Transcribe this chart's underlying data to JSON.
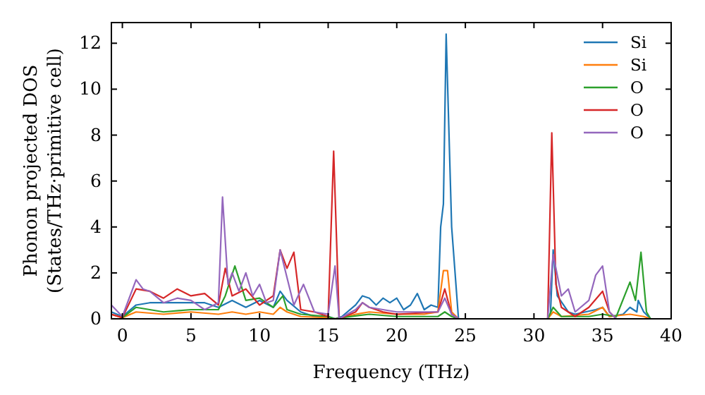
{
  "chart_data": {
    "type": "line",
    "xlabel": "Frequency (THz)",
    "ylabel": "Phonon projected DOS\n(States/THz·primitive cell)",
    "xlim": [
      -0.8,
      40
    ],
    "ylim": [
      0,
      12.9
    ],
    "xticks": [
      0,
      5,
      10,
      15,
      20,
      25,
      30,
      35,
      40
    ],
    "yticks": [
      0,
      2,
      4,
      6,
      8,
      10,
      12
    ],
    "legend": "top right",
    "grid": false,
    "series": [
      {
        "name": "Si",
        "color": "#1f77b4",
        "x": [
          -0.8,
          0,
          1,
          2,
          4,
          6,
          7,
          8,
          9,
          10,
          11,
          11.5,
          12,
          13,
          14,
          15,
          15.5,
          16,
          17,
          17.5,
          18,
          18.5,
          19,
          19.5,
          20,
          20.5,
          21,
          21.5,
          22,
          22.5,
          23,
          23.2,
          23.4,
          23.6,
          24,
          24.5,
          31,
          31.2,
          31.4,
          31.7,
          32.5,
          33,
          34.5,
          35,
          35.5,
          36.5,
          37,
          37.5,
          37.6,
          38,
          38.5
        ],
        "values": [
          0.3,
          0.1,
          0.6,
          0.7,
          0.7,
          0.7,
          0.5,
          0.8,
          0.5,
          0.8,
          0.5,
          1.2,
          0.8,
          0.3,
          0.1,
          0.1,
          0,
          0.1,
          0.6,
          1.0,
          0.9,
          0.6,
          0.9,
          0.7,
          0.9,
          0.4,
          0.6,
          1.1,
          0.4,
          0.6,
          0.5,
          4.0,
          5.0,
          12.4,
          4.0,
          0,
          0,
          0.2,
          3.0,
          1.0,
          0.3,
          0.2,
          0.4,
          0.5,
          0.1,
          0.2,
          0.5,
          0.3,
          0.8,
          0.3,
          0
        ]
      },
      {
        "name": "Si",
        "color": "#ff7f0e",
        "x": [
          -0.8,
          0,
          1,
          3,
          5,
          7,
          8,
          9,
          10,
          11,
          11.5,
          12,
          13,
          15,
          15.5,
          16,
          17,
          18,
          20,
          22,
          23,
          23.4,
          23.7,
          24,
          24.5,
          31,
          31.4,
          32,
          34,
          35,
          35.5,
          37,
          38,
          38.5
        ],
        "values": [
          0.2,
          0.05,
          0.3,
          0.2,
          0.3,
          0.2,
          0.3,
          0.2,
          0.3,
          0.2,
          0.5,
          0.3,
          0.1,
          0.05,
          0,
          0.05,
          0.2,
          0.3,
          0.2,
          0.2,
          0.3,
          2.1,
          2.1,
          0.3,
          0,
          0,
          0.3,
          0.1,
          0.2,
          0.5,
          0.1,
          0.2,
          0.1,
          0
        ]
      },
      {
        "name": "O",
        "color": "#2ca02c",
        "x": [
          0,
          1,
          3,
          5,
          7,
          7.5,
          8.2,
          9,
          10,
          11,
          11.7,
          12,
          13,
          15,
          15.5,
          16,
          18,
          20,
          23,
          23.5,
          24,
          24.5,
          31,
          31.4,
          32,
          34,
          35,
          36,
          37,
          37.4,
          37.8,
          38.2,
          38.5
        ],
        "values": [
          0.05,
          0.5,
          0.3,
          0.4,
          0.4,
          1.0,
          2.3,
          0.8,
          0.9,
          0.5,
          1.0,
          0.4,
          0.2,
          0.1,
          0,
          0.05,
          0.2,
          0.1,
          0.1,
          0.3,
          0.1,
          0,
          0,
          0.5,
          0.1,
          0.1,
          0.2,
          0.1,
          1.6,
          0.8,
          2.9,
          0.3,
          0
        ]
      },
      {
        "name": "O",
        "color": "#d62728",
        "x": [
          -0.8,
          0,
          1,
          2,
          3,
          4,
          5,
          6,
          7,
          7.5,
          8,
          9,
          10,
          11,
          11.5,
          12,
          12.5,
          13,
          14,
          15,
          15.4,
          15.8,
          17,
          17.5,
          18,
          19,
          20,
          23,
          23.5,
          24,
          24.5,
          31,
          31.3,
          31.6,
          32,
          33,
          34,
          35,
          35.5,
          36
        ],
        "values": [
          0.2,
          0.05,
          1.3,
          1.2,
          0.9,
          1.3,
          1.0,
          1.1,
          0.6,
          2.2,
          1.0,
          1.3,
          0.6,
          1.0,
          3.0,
          2.2,
          2.9,
          0.4,
          0.3,
          0.1,
          7.3,
          0,
          0.3,
          0.7,
          0.5,
          0.3,
          0.2,
          0.3,
          1.3,
          0.2,
          0,
          0,
          8.1,
          1.5,
          0.5,
          0.1,
          0.5,
          1.2,
          0.3,
          0
        ]
      },
      {
        "name": "O",
        "color": "#9467bd",
        "x": [
          -0.8,
          0,
          1,
          1.5,
          2,
          3,
          4,
          5,
          6,
          7,
          7.3,
          7.7,
          8,
          8.5,
          9,
          9.5,
          10,
          10.5,
          11,
          11.5,
          12,
          12.5,
          13.2,
          14,
          15,
          15.5,
          15.8,
          17,
          17.5,
          18,
          19,
          20,
          23,
          23.5,
          24,
          24.5,
          31,
          31.4,
          32,
          32.5,
          33,
          34,
          34.5,
          35,
          35.5,
          36
        ],
        "values": [
          0.6,
          0.1,
          1.7,
          1.3,
          1.2,
          0.7,
          0.9,
          0.8,
          0.4,
          0.7,
          5.3,
          1.5,
          2.0,
          1.2,
          2.0,
          1.0,
          1.5,
          0.7,
          0.8,
          3.0,
          1.8,
          0.6,
          1.5,
          0.3,
          0.2,
          2.3,
          0,
          0.4,
          0.7,
          0.5,
          0.4,
          0.3,
          0.3,
          0.9,
          0.2,
          0,
          0,
          2.8,
          1.0,
          1.3,
          0.3,
          0.8,
          1.9,
          2.3,
          0.3,
          0
        ]
      }
    ]
  }
}
